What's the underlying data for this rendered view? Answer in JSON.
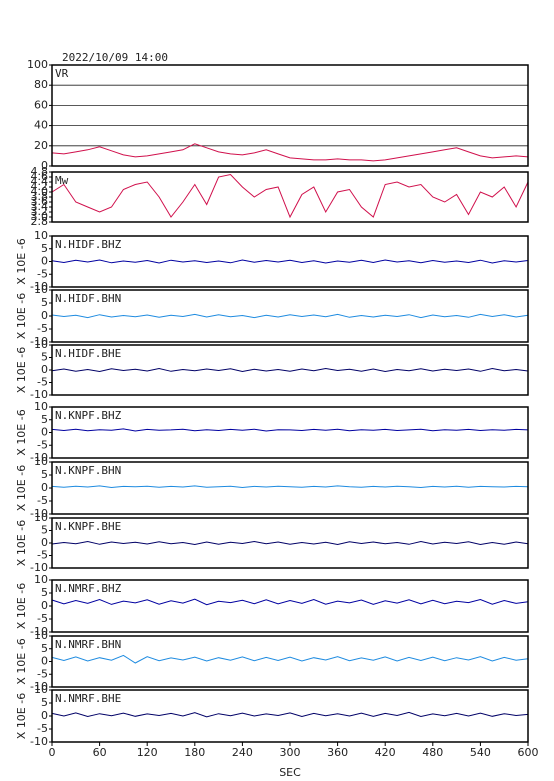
{
  "chart_data": [
    {
      "type": "line",
      "title": "2022/10/09 14:00",
      "x": [
        0,
        15,
        30,
        45,
        60,
        75,
        90,
        105,
        120,
        135,
        150,
        165,
        180,
        195,
        210,
        225,
        240,
        255,
        270,
        285,
        300,
        315,
        330,
        345,
        360,
        375,
        390,
        405,
        420,
        435,
        450,
        465,
        480,
        495,
        510,
        525,
        540,
        555,
        570,
        585,
        600
      ],
      "series": [
        {
          "name": "VR",
          "color": "#d0104c",
          "values": [
            13,
            12,
            14,
            16,
            19,
            15,
            11,
            9,
            10,
            12,
            14,
            16,
            22,
            18,
            14,
            12,
            11,
            13,
            16,
            12,
            8,
            7,
            6,
            6,
            7,
            6,
            6,
            5,
            6,
            8,
            10,
            12,
            14,
            16,
            18,
            14,
            10,
            8,
            9,
            10,
            9
          ]
        }
      ],
      "ylim": [
        0,
        100
      ],
      "yticks": [
        0,
        20,
        40,
        60,
        80,
        100
      ],
      "grid": true
    },
    {
      "type": "line",
      "x": [
        0,
        15,
        30,
        45,
        60,
        75,
        90,
        105,
        120,
        135,
        150,
        165,
        180,
        195,
        210,
        225,
        240,
        255,
        270,
        285,
        300,
        315,
        330,
        345,
        360,
        375,
        390,
        405,
        420,
        435,
        450,
        465,
        480,
        495,
        510,
        525,
        540,
        555,
        570,
        585,
        600
      ],
      "series": [
        {
          "name": "Mw",
          "color": "#d0104c",
          "values": [
            4.0,
            4.3,
            3.6,
            3.4,
            3.2,
            3.4,
            4.1,
            4.3,
            4.4,
            3.8,
            3.0,
            3.6,
            4.3,
            3.5,
            4.6,
            4.7,
            4.2,
            3.8,
            4.1,
            4.2,
            3.0,
            3.9,
            4.2,
            3.2,
            4.0,
            4.1,
            3.4,
            3.0,
            4.3,
            4.4,
            4.2,
            4.3,
            3.8,
            3.6,
            3.9,
            3.1,
            4.0,
            3.8,
            4.2,
            3.4,
            4.4
          ]
        }
      ],
      "ylim": [
        2.8,
        4.8
      ],
      "yticks": [
        2.8,
        {
          "value": 3,
          "label": "3.0"
        },
        3.2,
        3.4,
        3.6,
        3.8,
        {
          "value": 4,
          "label": "4.0"
        },
        4.2,
        4.4,
        4.6,
        4.8
      ],
      "grid": false
    },
    {
      "type": "line",
      "ylabel": "X 10E -6",
      "x": [
        0,
        15,
        30,
        45,
        60,
        75,
        90,
        105,
        120,
        135,
        150,
        165,
        180,
        195,
        210,
        225,
        240,
        255,
        270,
        285,
        300,
        315,
        330,
        345,
        360,
        375,
        390,
        405,
        420,
        435,
        450,
        465,
        480,
        495,
        510,
        525,
        540,
        555,
        570,
        585,
        600
      ],
      "series": [
        {
          "name": "N.HIDF.BHZ",
          "color": "#0000a0",
          "values": [
            0.3,
            -0.4,
            0.5,
            -0.2,
            0.6,
            -0.5,
            0.2,
            -0.3,
            0.4,
            -0.6,
            0.5,
            -0.2,
            0.3,
            -0.4,
            0.2,
            -0.5,
            0.6,
            -0.3,
            0.4,
            -0.2,
            0.5,
            -0.4,
            0.3,
            -0.6,
            0.2,
            -0.3,
            0.5,
            -0.4,
            0.6,
            -0.2,
            0.3,
            -0.5,
            0.4,
            -0.3,
            0.2,
            -0.4,
            0.5,
            -0.6,
            0.3,
            -0.2,
            0.4
          ]
        }
      ],
      "ylim": [
        -10,
        10
      ],
      "yticks": [
        -10,
        -5,
        0,
        5,
        10
      ],
      "grid": false
    },
    {
      "type": "line",
      "ylabel": "X 10E -6",
      "x": [
        0,
        15,
        30,
        45,
        60,
        75,
        90,
        105,
        120,
        135,
        150,
        165,
        180,
        195,
        210,
        225,
        240,
        255,
        270,
        285,
        300,
        315,
        330,
        345,
        360,
        375,
        390,
        405,
        420,
        435,
        450,
        465,
        480,
        495,
        510,
        525,
        540,
        555,
        570,
        585,
        600
      ],
      "series": [
        {
          "name": "N.HIDF.BHN",
          "color": "#1e8be0",
          "values": [
            0.4,
            -0.2,
            0.3,
            -0.6,
            0.5,
            -0.4,
            0.2,
            -0.3,
            0.4,
            -0.5,
            0.3,
            -0.2,
            0.6,
            -0.4,
            0.5,
            -0.3,
            0.2,
            -0.6,
            0.3,
            -0.4,
            0.5,
            -0.2,
            0.4,
            -0.3,
            0.6,
            -0.5,
            0.2,
            -0.4,
            0.3,
            -0.2,
            0.5,
            -0.6,
            0.4,
            -0.3,
            0.2,
            -0.5,
            0.6,
            -0.2,
            0.5,
            -0.4,
            0.3
          ]
        }
      ],
      "ylim": [
        -10,
        10
      ],
      "yticks": [
        -10,
        -5,
        0,
        5,
        10
      ],
      "grid": false
    },
    {
      "type": "line",
      "ylabel": "X 10E -6",
      "x": [
        0,
        15,
        30,
        45,
        60,
        75,
        90,
        105,
        120,
        135,
        150,
        165,
        180,
        195,
        210,
        225,
        240,
        255,
        270,
        285,
        300,
        315,
        330,
        345,
        360,
        375,
        390,
        405,
        420,
        435,
        450,
        465,
        480,
        495,
        510,
        525,
        540,
        555,
        570,
        585,
        600
      ],
      "series": [
        {
          "name": "N.HIDF.BHE",
          "color": "#000066",
          "values": [
            -0.3,
            0.4,
            -0.5,
            0.2,
            -0.6,
            0.5,
            -0.2,
            0.3,
            -0.4,
            0.6,
            -0.5,
            0.2,
            -0.3,
            0.4,
            -0.2,
            0.5,
            -0.6,
            0.3,
            -0.4,
            0.2,
            -0.5,
            0.4,
            -0.3,
            0.6,
            -0.2,
            0.3,
            -0.5,
            0.4,
            -0.6,
            0.2,
            -0.3,
            0.5,
            -0.4,
            0.3,
            -0.2,
            0.4,
            -0.5,
            0.6,
            -0.3,
            0.2,
            -0.4
          ]
        }
      ],
      "ylim": [
        -10,
        10
      ],
      "yticks": [
        -10,
        -5,
        0,
        5,
        10
      ],
      "grid": false
    },
    {
      "type": "line",
      "ylabel": "X 10E -6",
      "x": [
        0,
        15,
        30,
        45,
        60,
        75,
        90,
        105,
        120,
        135,
        150,
        165,
        180,
        195,
        210,
        225,
        240,
        255,
        270,
        285,
        300,
        315,
        330,
        345,
        360,
        375,
        390,
        405,
        420,
        435,
        450,
        465,
        480,
        495,
        510,
        525,
        540,
        555,
        570,
        585,
        600
      ],
      "series": [
        {
          "name": "N.KNPF.BHZ",
          "color": "#0000a0",
          "values": [
            1.2,
            0.8,
            1.3,
            0.7,
            1.1,
            0.9,
            1.4,
            0.6,
            1.2,
            0.9,
            1.0,
            1.3,
            0.7,
            1.1,
            0.8,
            1.2,
            0.9,
            1.3,
            0.6,
            1.1,
            1.0,
            0.8,
            1.2,
            0.9,
            1.3,
            0.7,
            1.1,
            0.9,
            1.2,
            0.8,
            1.0,
            1.3,
            0.7,
            1.1,
            0.9,
            1.2,
            0.8,
            1.1,
            0.9,
            1.2,
            1.0
          ]
        }
      ],
      "ylim": [
        -10,
        10
      ],
      "yticks": [
        -10,
        -5,
        0,
        5,
        10
      ],
      "grid": false
    },
    {
      "type": "line",
      "ylabel": "X 10E -6",
      "x": [
        0,
        15,
        30,
        45,
        60,
        75,
        90,
        105,
        120,
        135,
        150,
        165,
        180,
        195,
        210,
        225,
        240,
        255,
        270,
        285,
        300,
        315,
        330,
        345,
        360,
        375,
        390,
        405,
        420,
        435,
        450,
        465,
        480,
        495,
        510,
        525,
        540,
        555,
        570,
        585,
        600
      ],
      "series": [
        {
          "name": "N.KNPF.BHN",
          "color": "#1e8be0",
          "values": [
            0.6,
            0.3,
            0.7,
            0.4,
            0.8,
            0.2,
            0.6,
            0.5,
            0.7,
            0.3,
            0.6,
            0.4,
            0.8,
            0.3,
            0.5,
            0.7,
            0.2,
            0.6,
            0.4,
            0.7,
            0.5,
            0.3,
            0.6,
            0.4,
            0.8,
            0.5,
            0.3,
            0.6,
            0.4,
            0.7,
            0.5,
            0.2,
            0.6,
            0.4,
            0.7,
            0.3,
            0.6,
            0.5,
            0.4,
            0.6,
            0.5
          ]
        }
      ],
      "ylim": [
        -10,
        10
      ],
      "yticks": [
        -10,
        -5,
        0,
        5,
        10
      ],
      "grid": false
    },
    {
      "type": "line",
      "ylabel": "X 10E -6",
      "x": [
        0,
        15,
        30,
        45,
        60,
        75,
        90,
        105,
        120,
        135,
        150,
        165,
        180,
        195,
        210,
        225,
        240,
        255,
        270,
        285,
        300,
        315,
        330,
        345,
        360,
        375,
        390,
        405,
        420,
        435,
        450,
        465,
        480,
        495,
        510,
        525,
        540,
        555,
        570,
        585,
        600
      ],
      "series": [
        {
          "name": "N.KNPF.BHE",
          "color": "#000066",
          "values": [
            -0.4,
            0.2,
            -0.3,
            0.6,
            -0.5,
            0.4,
            -0.2,
            0.3,
            -0.4,
            0.5,
            -0.3,
            0.2,
            -0.6,
            0.4,
            -0.5,
            0.3,
            -0.2,
            0.6,
            -0.3,
            0.4,
            -0.5,
            0.2,
            -0.4,
            0.3,
            -0.6,
            0.5,
            -0.2,
            0.4,
            -0.3,
            0.2,
            -0.5,
            0.6,
            -0.4,
            0.3,
            -0.2,
            0.5,
            -0.6,
            0.2,
            -0.5,
            0.4,
            -0.3
          ]
        }
      ],
      "ylim": [
        -10,
        10
      ],
      "yticks": [
        -10,
        -5,
        0,
        5,
        10
      ],
      "grid": false
    },
    {
      "type": "line",
      "ylabel": "X 10E -6",
      "x": [
        0,
        15,
        30,
        45,
        60,
        75,
        90,
        105,
        120,
        135,
        150,
        165,
        180,
        195,
        210,
        225,
        240,
        255,
        270,
        285,
        300,
        315,
        330,
        345,
        360,
        375,
        390,
        405,
        420,
        435,
        450,
        465,
        480,
        495,
        510,
        525,
        540,
        555,
        570,
        585,
        600
      ],
      "series": [
        {
          "name": "N.NMRF.BHZ",
          "color": "#0000a0",
          "values": [
            2.3,
            0.8,
            2.1,
            1.0,
            2.5,
            0.6,
            1.9,
            1.2,
            2.4,
            0.7,
            2.0,
            1.1,
            2.6,
            0.5,
            1.8,
            1.3,
            2.2,
            0.9,
            2.4,
            0.8,
            2.1,
            1.0,
            2.5,
            0.7,
            1.9,
            1.2,
            2.3,
            0.6,
            2.0,
            1.1,
            2.4,
            0.8,
            2.2,
            0.9,
            1.8,
            1.3,
            2.5,
            0.7,
            2.1,
            1.0,
            1.6
          ]
        }
      ],
      "ylim": [
        -10,
        10
      ],
      "yticks": [
        -10,
        -5,
        0,
        5,
        10
      ],
      "grid": false
    },
    {
      "type": "line",
      "ylabel": "X 10E -6",
      "x": [
        0,
        15,
        30,
        45,
        60,
        75,
        90,
        105,
        120,
        135,
        150,
        165,
        180,
        195,
        210,
        225,
        240,
        255,
        270,
        285,
        300,
        315,
        330,
        345,
        360,
        375,
        390,
        405,
        420,
        435,
        450,
        465,
        480,
        495,
        510,
        525,
        540,
        555,
        570,
        585,
        600
      ],
      "series": [
        {
          "name": "N.NMRF.BHN",
          "color": "#1e8be0",
          "values": [
            1.6,
            0.4,
            1.8,
            0.2,
            1.5,
            0.5,
            2.4,
            -0.6,
            1.9,
            0.3,
            1.4,
            0.6,
            1.7,
            0.2,
            1.5,
            0.5,
            1.8,
            0.3,
            1.6,
            0.4,
            1.7,
            0.2,
            1.5,
            0.6,
            1.9,
            0.3,
            1.4,
            0.5,
            1.8,
            0.2,
            1.6,
            0.4,
            1.7,
            0.3,
            1.5,
            0.6,
            1.9,
            0.2,
            1.6,
            0.5,
            1.1
          ]
        }
      ],
      "ylim": [
        -10,
        10
      ],
      "yticks": [
        -10,
        -5,
        0,
        5,
        10
      ],
      "grid": false
    },
    {
      "type": "line",
      "ylabel": "X 10E -6",
      "xlabel": "SEC",
      "x": [
        0,
        15,
        30,
        45,
        60,
        75,
        90,
        105,
        120,
        135,
        150,
        165,
        180,
        195,
        210,
        225,
        240,
        255,
        270,
        285,
        300,
        315,
        330,
        345,
        360,
        375,
        390,
        405,
        420,
        435,
        450,
        465,
        480,
        495,
        510,
        525,
        540,
        555,
        570,
        585,
        600
      ],
      "series": [
        {
          "name": "N.NMRF.BHE",
          "color": "#000066",
          "values": [
            1.0,
            0.0,
            1.2,
            -0.2,
            0.9,
            0.1,
            1.1,
            -0.1,
            0.8,
            0.2,
            1.0,
            0.0,
            1.3,
            -0.3,
            0.9,
            0.1,
            1.1,
            0.0,
            0.8,
            0.2,
            1.2,
            -0.2,
            1.0,
            0.1,
            0.9,
            0.0,
            1.1,
            -0.1,
            1.0,
            0.2,
            1.4,
            -0.2,
            0.8,
            0.1,
            1.0,
            0.0,
            1.1,
            -0.1,
            0.9,
            0.2,
            0.6
          ]
        }
      ],
      "ylim": [
        -10,
        10
      ],
      "yticks": [
        -10,
        -5,
        0,
        5,
        10
      ],
      "xlim": [
        0,
        600
      ],
      "xticks": [
        0,
        60,
        120,
        180,
        240,
        300,
        360,
        420,
        480,
        540,
        600
      ],
      "grid": false
    }
  ]
}
